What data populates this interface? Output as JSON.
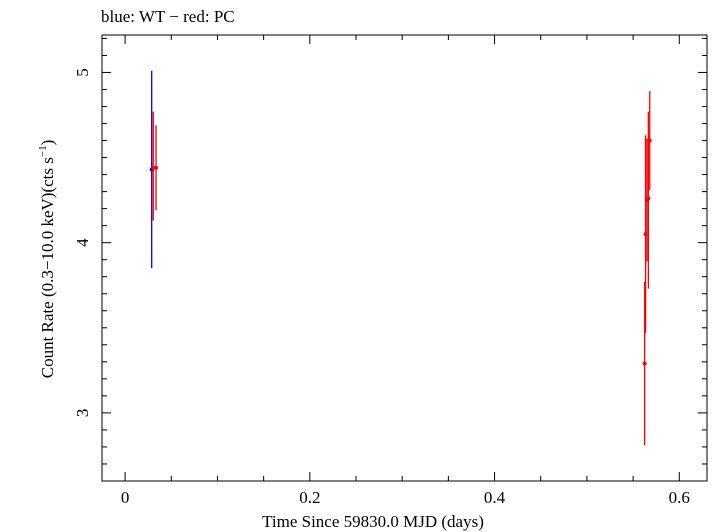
{
  "chart_data": {
    "type": "scatter",
    "title": "blue: WT − red: PC",
    "xlabel": "Time Since 59830.0 MJD (days)",
    "ylabel_main": "Count Rate (0.3−10.0 keV)(cts s",
    "ylabel_sup": "−1",
    "ylabel_close": ")",
    "xlim": [
      -0.025,
      0.63
    ],
    "ylim": [
      2.6,
      5.22
    ],
    "grid": false,
    "x_ticks": [
      {
        "value": 0,
        "label": "0"
      },
      {
        "value": 0.2,
        "label": "0.2"
      },
      {
        "value": 0.4,
        "label": "0.4"
      },
      {
        "value": 0.6,
        "label": "0.6"
      }
    ],
    "y_ticks": [
      {
        "value": 3,
        "label": "3"
      },
      {
        "value": 4,
        "label": "4"
      },
      {
        "value": 5,
        "label": "5"
      }
    ],
    "series": [
      {
        "color": "#0000ff",
        "points": [
          {
            "x": 0.0288,
            "y": 4.43,
            "yerr_low": 3.85,
            "yerr_high": 5.01
          }
        ]
      },
      {
        "color": "#ff0000",
        "points": [
          {
            "x": 0.0305,
            "y": 4.44,
            "yerr_low": 4.13,
            "yerr_high": 4.77
          },
          {
            "x": 0.0335,
            "y": 4.44,
            "yerr_low": 4.19,
            "yerr_high": 4.69
          },
          {
            "x": 0.5625,
            "y": 3.29,
            "yerr_low": 2.81,
            "yerr_high": 3.77
          },
          {
            "x": 0.5635,
            "y": 4.05,
            "yerr_low": 3.47,
            "yerr_high": 4.63
          },
          {
            "x": 0.565,
            "y": 4.25,
            "yerr_low": 3.89,
            "yerr_high": 4.61
          },
          {
            "x": 0.5665,
            "y": 4.26,
            "yerr_low": 3.73,
            "yerr_high": 4.77
          },
          {
            "x": 0.568,
            "y": 4.6,
            "yerr_low": 4.31,
            "yerr_high": 4.89
          }
        ]
      }
    ]
  }
}
